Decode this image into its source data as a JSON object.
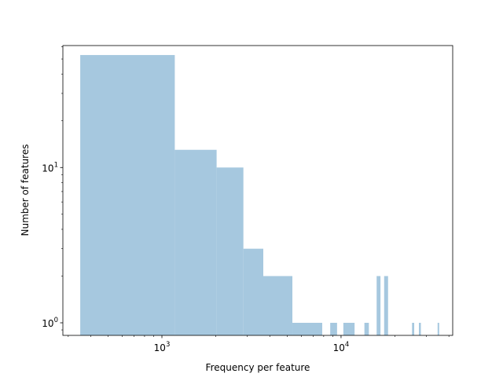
{
  "chart_data": {
    "type": "bar",
    "chart_kind": "histogram",
    "title": "",
    "xlabel": "Frequency per feature",
    "ylabel": "Number of features",
    "xscale": "log",
    "yscale": "log",
    "xlim": [
      280,
      42000
    ],
    "ylim": [
      0.83,
      61
    ],
    "grid": false,
    "bar_color": "#a6c8df",
    "x_tick_labels": [
      {
        "value": 1000,
        "base": "10",
        "exp": "3"
      },
      {
        "value": 10000,
        "base": "10",
        "exp": "4"
      }
    ],
    "y_tick_labels": [
      {
        "value": 1,
        "base": "10",
        "exp": "0"
      },
      {
        "value": 10,
        "base": "10",
        "exp": "1"
      }
    ],
    "bars": [
      {
        "x0": 350,
        "x1": 1180,
        "count": 53
      },
      {
        "x0": 1180,
        "x1": 2020,
        "count": 13
      },
      {
        "x0": 2020,
        "x1": 2850,
        "count": 10
      },
      {
        "x0": 2850,
        "x1": 3680,
        "count": 3
      },
      {
        "x0": 3680,
        "x1": 5350,
        "count": 2
      },
      {
        "x0": 5350,
        "x1": 7850,
        "count": 1
      },
      {
        "x0": 8700,
        "x1": 9500,
        "count": 1
      },
      {
        "x0": 10300,
        "x1": 11900,
        "count": 1
      },
      {
        "x0": 13500,
        "x1": 14300,
        "count": 1
      },
      {
        "x0": 15800,
        "x1": 16600,
        "count": 2
      },
      {
        "x0": 17400,
        "x1": 18300,
        "count": 2
      },
      {
        "x0": 24900,
        "x1": 25600,
        "count": 1
      },
      {
        "x0": 27200,
        "x1": 27900,
        "count": 1
      },
      {
        "x0": 34600,
        "x1": 35300,
        "count": 1
      }
    ]
  }
}
